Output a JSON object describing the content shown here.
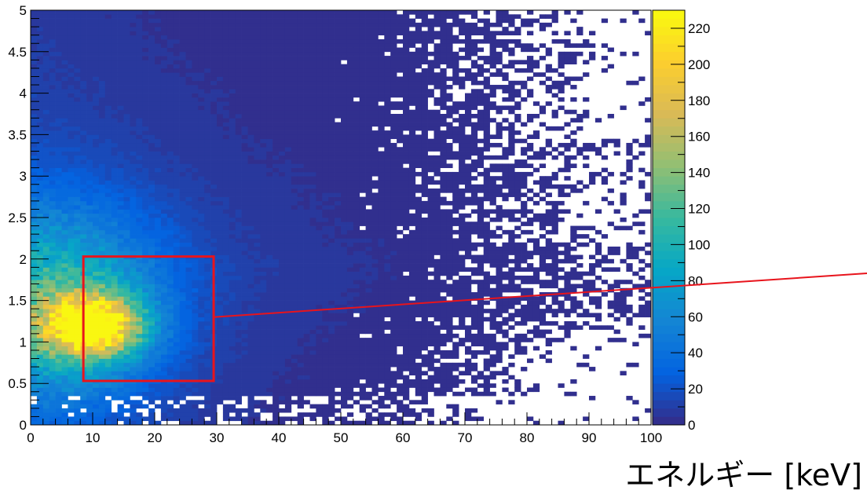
{
  "chart_data": {
    "type": "heatmap",
    "title": "",
    "xlabel": "エネルギー [keV]",
    "ylabel": "",
    "xlim": [
      0,
      100
    ],
    "ylim": [
      0,
      5
    ],
    "x_bins": 100,
    "y_bins": 100,
    "x_ticks": [
      {
        "value": 0,
        "label": "0"
      },
      {
        "value": 10,
        "label": "10"
      },
      {
        "value": 20,
        "label": "20"
      },
      {
        "value": 30,
        "label": "30"
      },
      {
        "value": 40,
        "label": "40"
      },
      {
        "value": 50,
        "label": "50"
      },
      {
        "value": 60,
        "label": "60"
      },
      {
        "value": 70,
        "label": "70"
      },
      {
        "value": 80,
        "label": "80"
      },
      {
        "value": 90,
        "label": "90"
      },
      {
        "value": 100,
        "label": "100"
      }
    ],
    "y_ticks": [
      {
        "value": 0,
        "label": "0"
      },
      {
        "value": 0.5,
        "label": "0.5"
      },
      {
        "value": 1,
        "label": "1"
      },
      {
        "value": 1.5,
        "label": "1.5"
      },
      {
        "value": 2,
        "label": "2"
      },
      {
        "value": 2.5,
        "label": "2.5"
      },
      {
        "value": 3,
        "label": "3"
      },
      {
        "value": 3.5,
        "label": "3.5"
      },
      {
        "value": 4,
        "label": "4"
      },
      {
        "value": 4.5,
        "label": "4.5"
      },
      {
        "value": 5,
        "label": "5"
      }
    ],
    "colorbar": {
      "zlim": [
        0,
        230
      ],
      "ticks": [
        {
          "value": 0,
          "label": "0"
        },
        {
          "value": 20,
          "label": "20"
        },
        {
          "value": 40,
          "label": "40"
        },
        {
          "value": 60,
          "label": "60"
        },
        {
          "value": 80,
          "label": "80"
        },
        {
          "value": 100,
          "label": "100"
        },
        {
          "value": 120,
          "label": "120"
        },
        {
          "value": 140,
          "label": "140"
        },
        {
          "value": 160,
          "label": "160"
        },
        {
          "value": 180,
          "label": "180"
        },
        {
          "value": 200,
          "label": "200"
        },
        {
          "value": 220,
          "label": "220"
        }
      ],
      "stops": [
        "#352a87",
        "#0363e1",
        "#1485d4",
        "#06a7c6",
        "#38b99e",
        "#92bf73",
        "#d9ba56",
        "#fcce2e",
        "#f9fb0e"
      ]
    },
    "peak": {
      "x": 10,
      "y": 1.2,
      "value": 225
    },
    "selection_box": {
      "x_range": [
        8.5,
        29.5
      ],
      "y_range": [
        0.53,
        2.03
      ],
      "color": "#e8141c"
    },
    "annotation_line": {
      "from": {
        "x": 29.5,
        "y": 1.3
      },
      "color": "#e8141c"
    }
  }
}
